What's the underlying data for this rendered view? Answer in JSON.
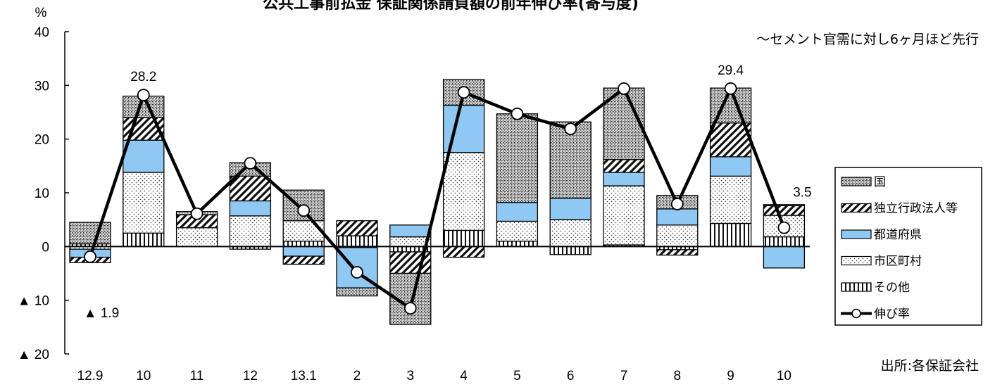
{
  "chart_data": {
    "type": "bar",
    "title": "公共工事前払金 保証関係請負額の前年伸び率(寄与度)",
    "subtitle": "〜セメント官需に対し6ヶ月ほど先行",
    "source": "出所:各保証会社",
    "yunit": "%",
    "ylim": [
      -20,
      40
    ],
    "yticks": [
      40,
      30,
      20,
      10,
      0,
      -10,
      -20
    ],
    "ytick_labels": [
      "40",
      "30",
      "20",
      "10",
      "0",
      "▲ 10",
      "▲ 20"
    ],
    "grid": false,
    "legend_position": "right",
    "categories": [
      "12.9",
      "10",
      "11",
      "12",
      "13.1",
      "2",
      "3",
      "4",
      "5",
      "6",
      "7",
      "8",
      "9",
      "10"
    ],
    "series": [
      {
        "name": "その他",
        "kind": "bar",
        "pattern": "vlines",
        "values": [
          0.5,
          2.5,
          0,
          -0.5,
          1,
          2,
          -1,
          3,
          1,
          -1.5,
          0.3,
          -0.6,
          4.3,
          1.8
        ]
      },
      {
        "name": "市区町村",
        "kind": "bar",
        "pattern": "dots",
        "values": [
          -0.5,
          11.3,
          3.5,
          5.7,
          3.8,
          -0.2,
          1.8,
          14.5,
          3.7,
          5,
          11,
          4,
          8.8,
          4
        ]
      },
      {
        "name": "都道府県",
        "kind": "bar",
        "pattern": "blue",
        "values": [
          -1.5,
          6,
          0,
          2.8,
          -1.8,
          -7.5,
          2.2,
          8.8,
          3.5,
          4,
          2.5,
          3,
          3.6,
          -4
        ]
      },
      {
        "name": "独立行政法人等",
        "kind": "bar",
        "pattern": "hatch",
        "values": [
          -1,
          4.2,
          2.4,
          4.6,
          -1.5,
          2.8,
          -4,
          -2,
          0,
          0,
          2.4,
          -1,
          6.3,
          1.8
        ]
      },
      {
        "name": "国",
        "kind": "bar",
        "pattern": "dense",
        "values": [
          4,
          4,
          0.6,
          2.5,
          5.7,
          -1.5,
          -9.5,
          4.8,
          16.5,
          14.2,
          13.3,
          2.5,
          6.5,
          0.2
        ]
      },
      {
        "name": "伸び率",
        "kind": "line",
        "values": [
          -1.9,
          28.2,
          6.1,
          15.5,
          6.7,
          -4.8,
          -11.5,
          28.7,
          24.7,
          21.9,
          29.4,
          7.9,
          29.4,
          3.5
        ]
      }
    ],
    "data_labels": [
      {
        "index": 0,
        "text": "▲ 1.9",
        "pos": "below"
      },
      {
        "index": 1,
        "text": "28.2",
        "pos": "above"
      },
      {
        "index": 12,
        "text": "29.4",
        "pos": "above"
      },
      {
        "index": 13,
        "text": "3.5",
        "pos": "above-right"
      }
    ]
  }
}
